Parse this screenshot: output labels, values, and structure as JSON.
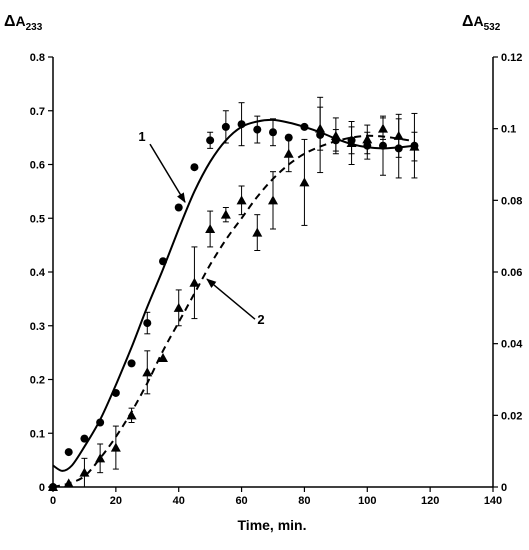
{
  "chart_data": {
    "type": "scatter",
    "xlabel": "Time, min.",
    "ylabel_left": "ΔA233",
    "ylabel_right": "ΔA532",
    "xlim": [
      0,
      140
    ],
    "ylim_left": [
      0,
      0.8
    ],
    "ylim_right": [
      0,
      0.12
    ],
    "xticks": [
      "0",
      "20",
      "40",
      "60",
      "80",
      "100",
      "120",
      "140"
    ],
    "yticks_left": [
      "0",
      "0.1",
      "0.2",
      "0.3",
      "0.4",
      "0.5",
      "0.6",
      "0.7",
      "0.8"
    ],
    "yticks_right": [
      "0",
      "0.02",
      "0.04",
      "0.06",
      "0.08",
      "0.1",
      "0.12"
    ],
    "grid": false,
    "legend": "none",
    "series": [
      {
        "axis": "left",
        "marker": "circle",
        "points": [
          {
            "x": 0,
            "y": 0.0,
            "err": 0
          },
          {
            "x": 5,
            "y": 0.065,
            "err": 0
          },
          {
            "x": 10,
            "y": 0.09,
            "err": 0
          },
          {
            "x": 15,
            "y": 0.12,
            "err": 0
          },
          {
            "x": 20,
            "y": 0.175,
            "err": 0
          },
          {
            "x": 25,
            "y": 0.23,
            "err": 0
          },
          {
            "x": 30,
            "y": 0.305,
            "err": 0.02
          },
          {
            "x": 35,
            "y": 0.42,
            "err": 0
          },
          {
            "x": 40,
            "y": 0.52,
            "err": 0
          },
          {
            "x": 45,
            "y": 0.595,
            "err": 0
          },
          {
            "x": 50,
            "y": 0.645,
            "err": 0.015
          },
          {
            "x": 55,
            "y": 0.67,
            "err": 0.03
          },
          {
            "x": 60,
            "y": 0.675,
            "err": 0.04
          },
          {
            "x": 65,
            "y": 0.665,
            "err": 0.025
          },
          {
            "x": 70,
            "y": 0.66,
            "err": 0.025
          },
          {
            "x": 75,
            "y": 0.65,
            "err": 0
          },
          {
            "x": 80,
            "y": 0.67,
            "err": 0
          },
          {
            "x": 85,
            "y": 0.655,
            "err": 0.07
          },
          {
            "x": 90,
            "y": 0.645,
            "err": 0.02
          },
          {
            "x": 95,
            "y": 0.645,
            "err": 0.025
          },
          {
            "x": 100,
            "y": 0.635,
            "err": 0.025
          },
          {
            "x": 105,
            "y": 0.635,
            "err": 0.055
          },
          {
            "x": 110,
            "y": 0.63,
            "err": 0.055
          },
          {
            "x": 115,
            "y": 0.635,
            "err": 0.06
          }
        ]
      },
      {
        "axis": "right",
        "marker": "triangle",
        "points": [
          {
            "x": 0,
            "y": 0.0,
            "err": 0
          },
          {
            "x": 5,
            "y": 0.001,
            "err": 0
          },
          {
            "x": 10,
            "y": 0.004,
            "err": 0.004
          },
          {
            "x": 15,
            "y": 0.008,
            "err": 0.004
          },
          {
            "x": 20,
            "y": 0.011,
            "err": 0.006
          },
          {
            "x": 25,
            "y": 0.02,
            "err": 0.002
          },
          {
            "x": 30,
            "y": 0.032,
            "err": 0.006
          },
          {
            "x": 35,
            "y": 0.036,
            "err": 0
          },
          {
            "x": 40,
            "y": 0.05,
            "err": 0.005
          },
          {
            "x": 45,
            "y": 0.057,
            "err": 0.01
          },
          {
            "x": 50,
            "y": 0.072,
            "err": 0.005
          },
          {
            "x": 55,
            "y": 0.076,
            "err": 0.002
          },
          {
            "x": 60,
            "y": 0.08,
            "err": 0.004
          },
          {
            "x": 65,
            "y": 0.071,
            "err": 0.005
          },
          {
            "x": 70,
            "y": 0.08,
            "err": 0.008
          },
          {
            "x": 75,
            "y": 0.093,
            "err": 0.005
          },
          {
            "x": 80,
            "y": 0.085,
            "err": 0.012
          },
          {
            "x": 85,
            "y": 0.1,
            "err": 0.006
          },
          {
            "x": 90,
            "y": 0.098,
            "err": 0.005
          },
          {
            "x": 95,
            "y": 0.096,
            "err": 0.006
          },
          {
            "x": 100,
            "y": 0.097,
            "err": 0.004
          },
          {
            "x": 105,
            "y": 0.1,
            "err": 0.003
          },
          {
            "x": 110,
            "y": 0.098,
            "err": 0.006
          },
          {
            "x": 115,
            "y": 0.095,
            "err": 0.004
          }
        ]
      }
    ],
    "curves": [
      {
        "axis": "left",
        "style": "solid",
        "points": [
          [
            0,
            0.04
          ],
          [
            3,
            0.03
          ],
          [
            6,
            0.04
          ],
          [
            10,
            0.075
          ],
          [
            15,
            0.125
          ],
          [
            20,
            0.19
          ],
          [
            25,
            0.26
          ],
          [
            30,
            0.335
          ],
          [
            35,
            0.405
          ],
          [
            40,
            0.48
          ],
          [
            45,
            0.55
          ],
          [
            50,
            0.605
          ],
          [
            55,
            0.645
          ],
          [
            60,
            0.67
          ],
          [
            65,
            0.68
          ],
          [
            70,
            0.683
          ],
          [
            75,
            0.678
          ],
          [
            80,
            0.67
          ],
          [
            85,
            0.66
          ],
          [
            90,
            0.648
          ],
          [
            95,
            0.638
          ],
          [
            100,
            0.632
          ],
          [
            105,
            0.63
          ],
          [
            110,
            0.632
          ],
          [
            115,
            0.635
          ]
        ]
      },
      {
        "axis": "right",
        "style": "dashed",
        "points": [
          [
            0,
            0
          ],
          [
            5,
            0.001
          ],
          [
            10,
            0.003
          ],
          [
            15,
            0.008
          ],
          [
            20,
            0.014
          ],
          [
            25,
            0.021
          ],
          [
            30,
            0.029
          ],
          [
            35,
            0.038
          ],
          [
            40,
            0.046
          ],
          [
            45,
            0.054
          ],
          [
            50,
            0.062
          ],
          [
            55,
            0.069
          ],
          [
            60,
            0.075
          ],
          [
            65,
            0.081
          ],
          [
            70,
            0.086
          ],
          [
            75,
            0.09
          ],
          [
            80,
            0.093
          ],
          [
            85,
            0.095
          ],
          [
            90,
            0.0965
          ],
          [
            95,
            0.0975
          ],
          [
            100,
            0.098
          ],
          [
            105,
            0.0978
          ],
          [
            110,
            0.0972
          ],
          [
            115,
            0.0965
          ]
        ]
      }
    ],
    "annotations": [
      {
        "label": "1",
        "arrow_to_x": 42,
        "arrow_to_y": 0.53,
        "axis": "left"
      },
      {
        "label": "2",
        "arrow_to_x": 49,
        "arrow_to_y": 0.058,
        "axis": "right"
      }
    ]
  }
}
